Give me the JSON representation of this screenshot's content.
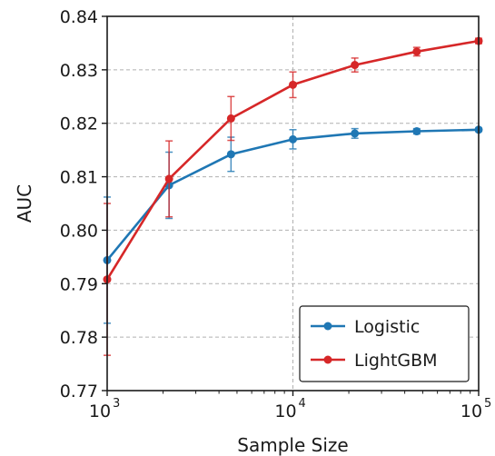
{
  "chart_data": {
    "type": "line",
    "title": "",
    "xlabel": "Sample Size",
    "ylabel": "AUC",
    "x_scale": "log",
    "x": [
      1000,
      2154,
      4642,
      10000,
      21544,
      46416,
      100000
    ],
    "xlim": [
      1000,
      100000
    ],
    "ylim": [
      0.77,
      0.84
    ],
    "x_ticks": [
      1000,
      10000,
      100000
    ],
    "x_tick_labels": [
      {
        "base": "10",
        "exp": "3"
      },
      {
        "base": "10",
        "exp": "4"
      },
      {
        "base": "10",
        "exp": "5"
      }
    ],
    "y_ticks": [
      0.77,
      0.78,
      0.79,
      0.8,
      0.81,
      0.82,
      0.83,
      0.84
    ],
    "y_tick_labels": [
      "0.77",
      "0.78",
      "0.79",
      "0.80",
      "0.81",
      "0.82",
      "0.83",
      "0.84"
    ],
    "grid": true,
    "legend_position": "bottom-right",
    "series": [
      {
        "name": "Logistic",
        "color": "#1f77b4",
        "values": [
          0.7944,
          0.8084,
          0.8142,
          0.817,
          0.8181,
          0.8185,
          0.8188
        ],
        "errors": [
          0.0118,
          0.0062,
          0.0032,
          0.0018,
          0.0009,
          0.0005,
          0.0003
        ]
      },
      {
        "name": "LightGBM",
        "color": "#d62728",
        "values": [
          0.7908,
          0.8096,
          0.8209,
          0.8272,
          0.8309,
          0.8334,
          0.8354
        ],
        "errors": [
          0.0142,
          0.0071,
          0.0041,
          0.0024,
          0.0013,
          0.0008,
          0.0005
        ]
      }
    ]
  }
}
